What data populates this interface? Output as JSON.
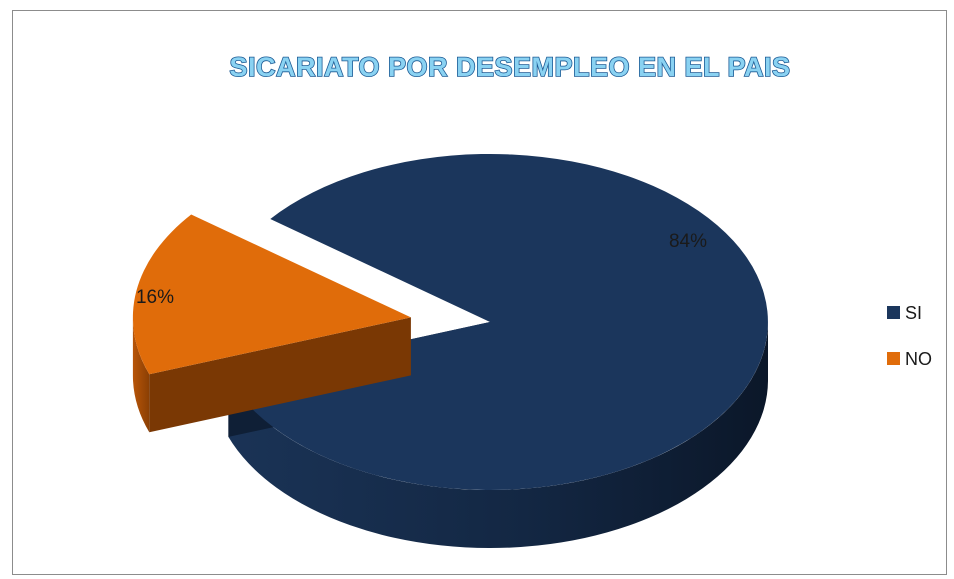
{
  "chart_data": {
    "type": "pie",
    "title": "SICARIATO POR DESEMPLEO EN EL PAIS",
    "categories": [
      "SI",
      "NO"
    ],
    "values": [
      84,
      16
    ],
    "value_labels": [
      "84%",
      "16%"
    ],
    "colors": [
      "#1b365c",
      "#e06c0a"
    ],
    "legend_position": "right",
    "three_d": true,
    "exploded": "NO"
  }
}
